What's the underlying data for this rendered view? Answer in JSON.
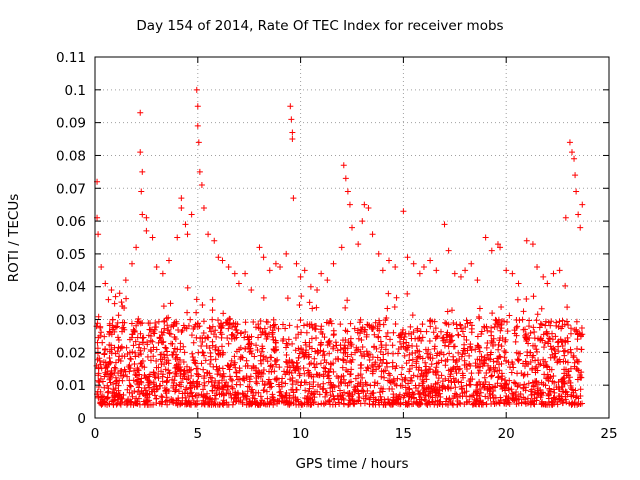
{
  "chart_data": {
    "type": "scatter",
    "title": "Day 154 of 2014, Rate Of TEC Index for receiver mobs",
    "xlabel": "GPS time / hours",
    "ylabel": "ROTI / TECUs",
    "xlim": [
      0,
      25
    ],
    "ylim": [
      0,
      0.11
    ],
    "xticks": [
      0,
      5,
      10,
      15,
      20,
      25
    ],
    "xtick_labels": [
      "0",
      "5",
      "10",
      "15",
      "20",
      "25"
    ],
    "yticks": [
      0,
      0.01,
      0.02,
      0.03,
      0.04,
      0.05,
      0.06,
      0.07,
      0.08,
      0.09,
      0.1,
      0.11
    ],
    "ytick_labels": [
      "0",
      "0.01",
      "0.02",
      "0.03",
      "0.04",
      "0.05",
      "0.06",
      "0.07",
      "0.08",
      "0.09",
      "0.1",
      "0.11"
    ],
    "grid": true,
    "marker": "+",
    "series": [
      {
        "name": "ROTI",
        "color": "#ff0000",
        "x": [
          0.1,
          0.1,
          0.15,
          0.3,
          0.5,
          0.8,
          1.0,
          1.2,
          1.5,
          1.8,
          2.0,
          2.2,
          2.2,
          2.25,
          2.3,
          2.3,
          2.5,
          2.5,
          2.8,
          3.0,
          3.3,
          3.6,
          4.0,
          4.2,
          4.2,
          4.4,
          4.5,
          4.7,
          4.95,
          5.0,
          5.0,
          5.05,
          5.1,
          5.2,
          5.3,
          5.5,
          5.8,
          6.0,
          6.2,
          6.5,
          6.8,
          7.0,
          7.3,
          7.6,
          8.0,
          8.2,
          8.5,
          8.8,
          9.0,
          9.3,
          9.5,
          9.55,
          9.6,
          9.6,
          9.65,
          9.8,
          10.0,
          10.2,
          10.5,
          10.8,
          11.0,
          11.3,
          11.6,
          12.0,
          12.1,
          12.2,
          12.3,
          12.4,
          12.5,
          12.8,
          13.0,
          13.1,
          13.3,
          13.5,
          13.8,
          14.0,
          14.3,
          14.6,
          15.0,
          15.2,
          15.5,
          15.8,
          16.0,
          16.3,
          16.6,
          17.0,
          17.2,
          17.5,
          17.8,
          18.0,
          18.3,
          18.6,
          19.0,
          19.3,
          19.6,
          19.7,
          20.0,
          20.3,
          20.6,
          21.0,
          21.3,
          21.5,
          21.8,
          22.0,
          22.3,
          22.6,
          22.9,
          23.1,
          23.2,
          23.3,
          23.35,
          23.4,
          23.5,
          23.6,
          23.7
        ],
        "y": [
          0.072,
          0.061,
          0.056,
          0.046,
          0.041,
          0.039,
          0.037,
          0.038,
          0.042,
          0.047,
          0.052,
          0.093,
          0.081,
          0.069,
          0.075,
          0.062,
          0.061,
          0.057,
          0.055,
          0.046,
          0.044,
          0.048,
          0.055,
          0.067,
          0.064,
          0.059,
          0.056,
          0.062,
          0.1,
          0.095,
          0.089,
          0.084,
          0.075,
          0.071,
          0.064,
          0.056,
          0.054,
          0.049,
          0.048,
          0.046,
          0.044,
          0.041,
          0.044,
          0.039,
          0.052,
          0.049,
          0.045,
          0.047,
          0.046,
          0.05,
          0.095,
          0.091,
          0.087,
          0.085,
          0.067,
          0.047,
          0.043,
          0.045,
          0.04,
          0.039,
          0.044,
          0.042,
          0.047,
          0.052,
          0.077,
          0.073,
          0.069,
          0.065,
          0.058,
          0.053,
          0.06,
          0.065,
          0.064,
          0.056,
          0.05,
          0.045,
          0.048,
          0.046,
          0.063,
          0.049,
          0.047,
          0.044,
          0.046,
          0.048,
          0.045,
          0.059,
          0.051,
          0.044,
          0.043,
          0.045,
          0.047,
          0.042,
          0.055,
          0.051,
          0.053,
          0.052,
          0.045,
          0.044,
          0.041,
          0.054,
          0.053,
          0.046,
          0.043,
          0.041,
          0.044,
          0.045,
          0.061,
          0.084,
          0.081,
          0.079,
          0.074,
          0.069,
          0.062,
          0.058,
          0.065
        ]
      }
    ],
    "baseline_band": {
      "description": "dense band of points across 0-23.7 hours",
      "x_range": [
        0.05,
        23.7
      ],
      "y_typical_range": [
        0.004,
        0.03
      ]
    }
  }
}
